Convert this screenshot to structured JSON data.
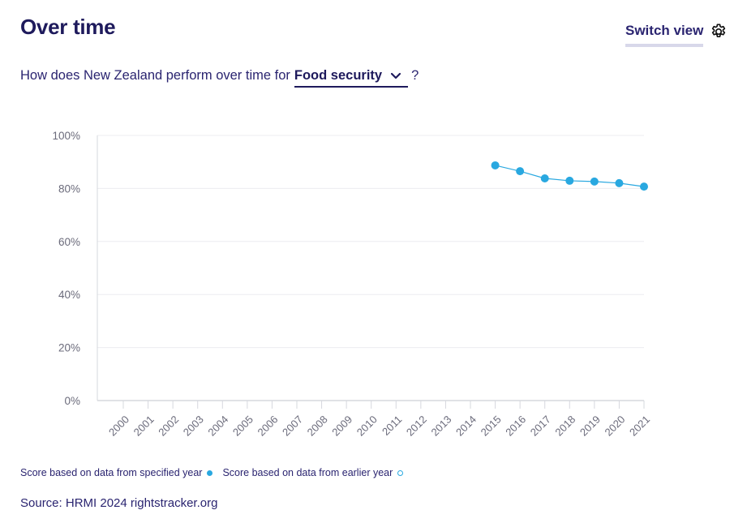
{
  "header": {
    "title": "Over time",
    "switch_view_label": "Switch view",
    "switch_icon": "gear-icon"
  },
  "question": {
    "prefix": "How does New Zealand perform over time for",
    "selected_metric": "Food security",
    "dropdown_icon": "chevron-down-icon",
    "suffix": "?"
  },
  "chart_data": {
    "type": "line",
    "title": "",
    "xlabel": "",
    "ylabel": "",
    "x": [
      "2000",
      "2001",
      "2002",
      "2003",
      "2004",
      "2005",
      "2006",
      "2007",
      "2008",
      "2009",
      "2010",
      "2011",
      "2012",
      "2013",
      "2014",
      "2015",
      "2016",
      "2017",
      "2018",
      "2019",
      "2020",
      "2021"
    ],
    "ylim": [
      0,
      100
    ],
    "yticks": [
      0,
      20,
      40,
      60,
      80,
      100
    ],
    "ytick_labels": [
      "0%",
      "20%",
      "40%",
      "60%",
      "80%",
      "100%"
    ],
    "grid": true,
    "series": [
      {
        "name": "Score based on data from specified year",
        "color": "#29a8e0",
        "points": [
          {
            "x": "2015",
            "y": 88.7
          },
          {
            "x": "2016",
            "y": 86.5
          },
          {
            "x": "2017",
            "y": 83.8
          },
          {
            "x": "2018",
            "y": 82.9
          },
          {
            "x": "2019",
            "y": 82.6
          },
          {
            "x": "2020",
            "y": 82.0
          },
          {
            "x": "2021",
            "y": 80.7
          }
        ]
      }
    ],
    "legend": [
      {
        "label": "Score based on data from specified year",
        "marker": "filled-circle",
        "color": "#29a8e0"
      },
      {
        "label": "Score based on data from earlier year",
        "marker": "open-circle",
        "color": "#29a8e0"
      }
    ],
    "legend_position": "bottom-left"
  },
  "footer": {
    "source": "Source: HRMI 2024 rightstracker.org"
  }
}
